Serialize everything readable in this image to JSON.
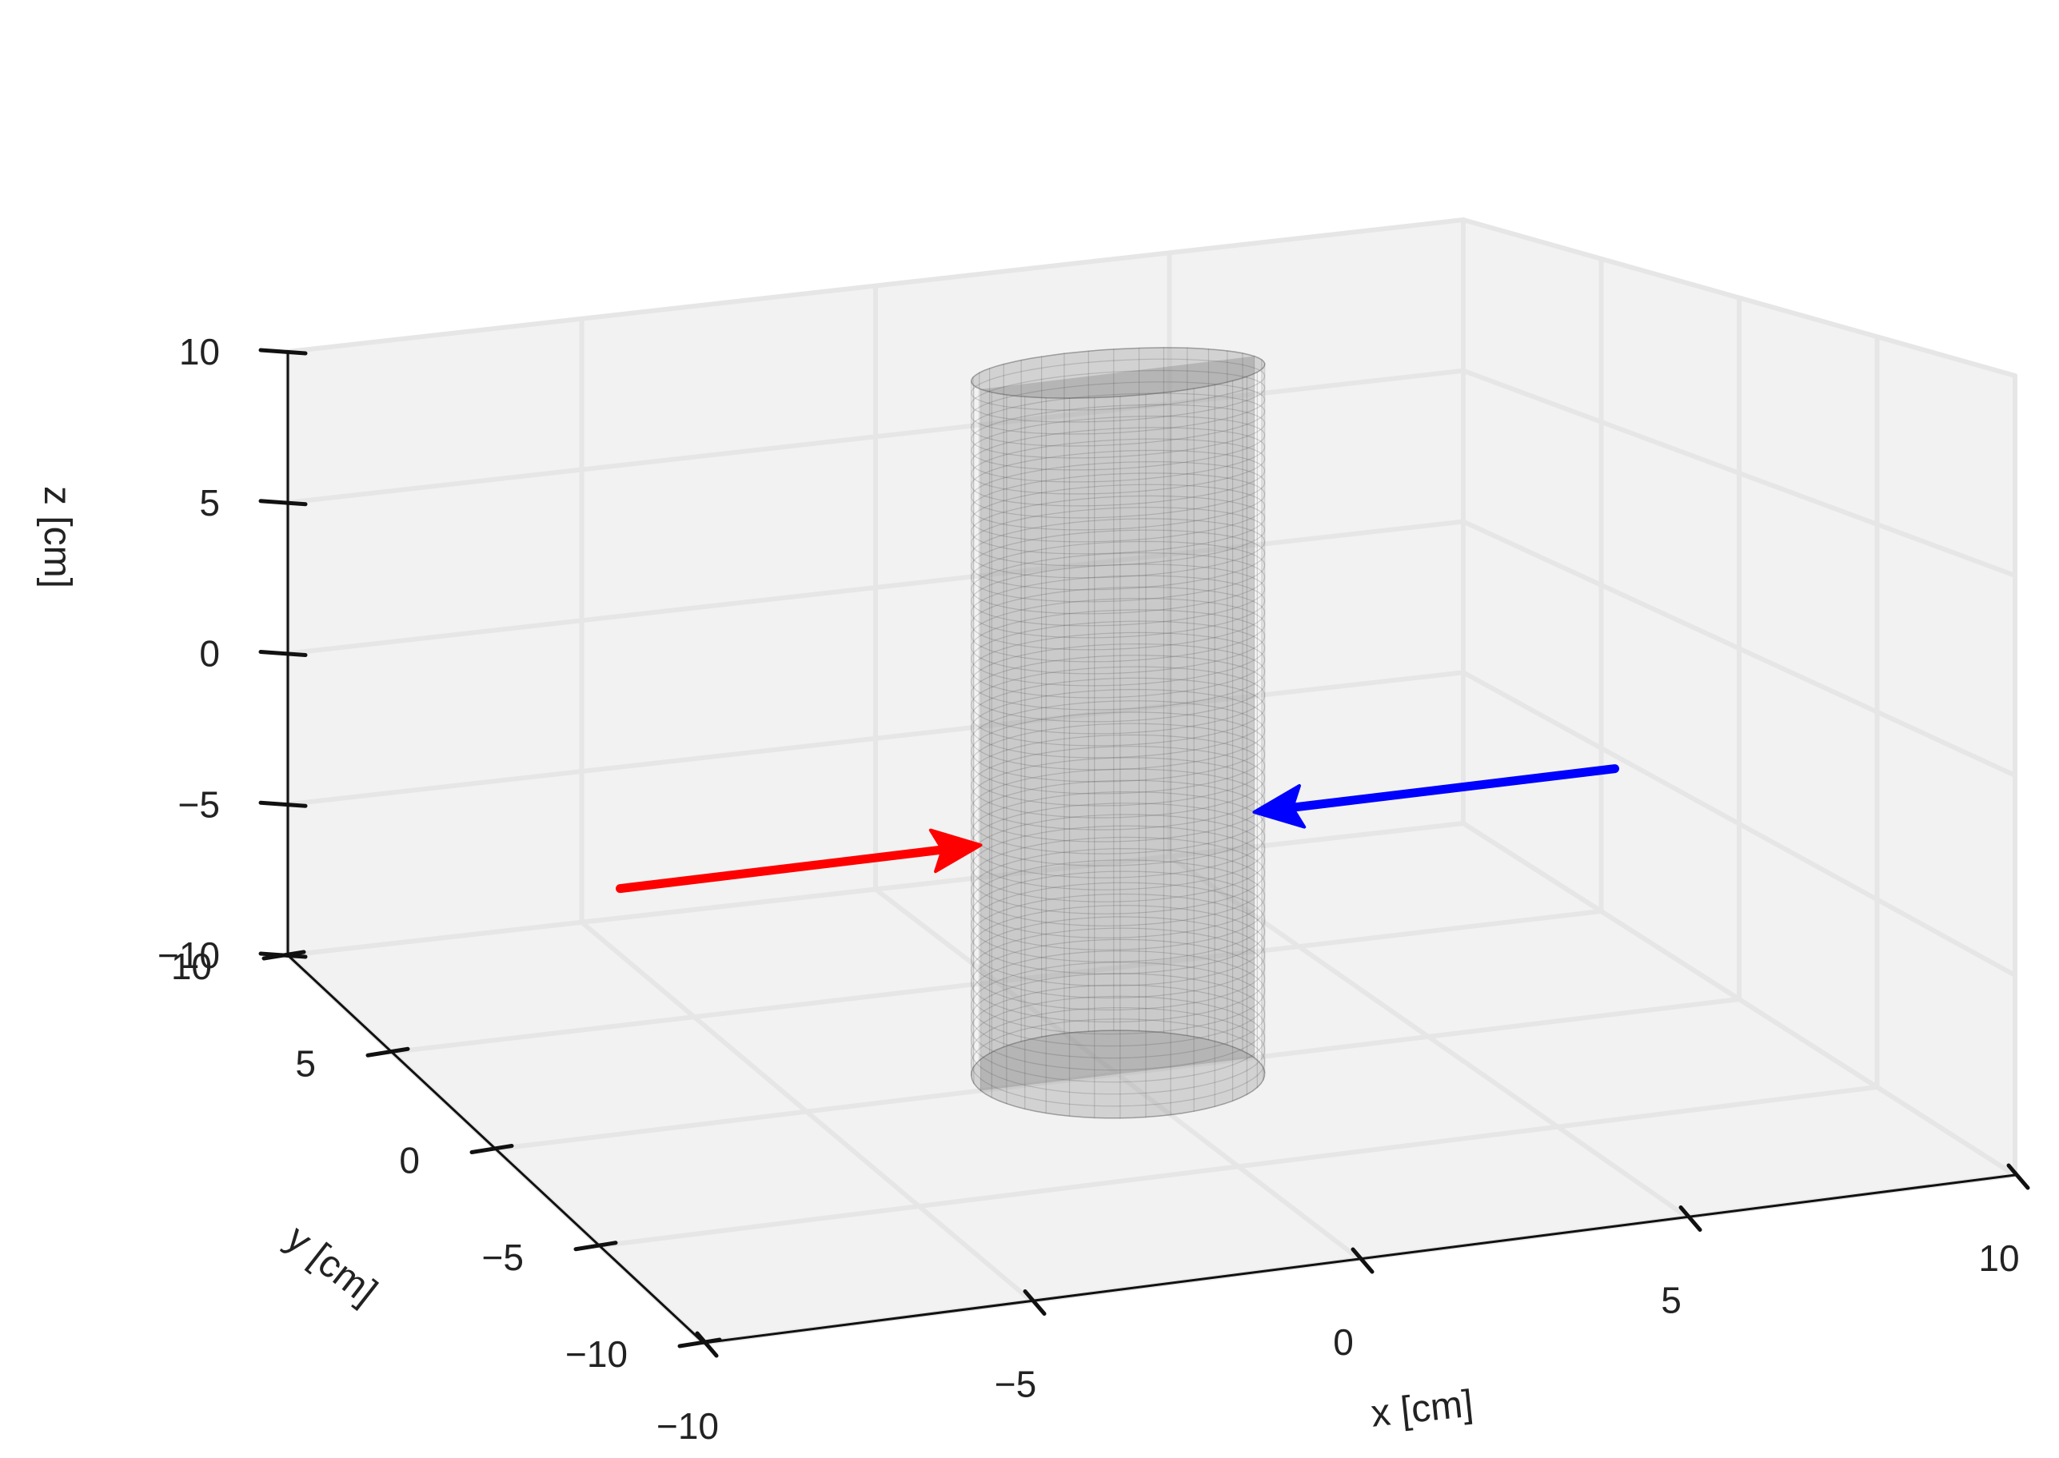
{
  "chart_data": {
    "type": "3d-scene",
    "title": "",
    "xlabel": "x [cm]",
    "ylabel": "y [cm]",
    "zlabel": "z [cm]",
    "xlim": [
      -10,
      10
    ],
    "ylim": [
      -10,
      10
    ],
    "zlim": [
      -10,
      10
    ],
    "x_ticks": [
      {
        "v": -10,
        "label": "−10"
      },
      {
        "v": -5,
        "label": "−5"
      },
      {
        "v": 0,
        "label": "0"
      },
      {
        "v": 5,
        "label": "5"
      },
      {
        "v": 10,
        "label": "10"
      }
    ],
    "y_ticks": [
      {
        "v": -10,
        "label": "−10"
      },
      {
        "v": -5,
        "label": "−5"
      },
      {
        "v": 0,
        "label": "0"
      },
      {
        "v": 5,
        "label": "5"
      },
      {
        "v": 10,
        "label": "10"
      }
    ],
    "z_ticks": [
      {
        "v": -10,
        "label": "−10"
      },
      {
        "v": -5,
        "label": "−5"
      },
      {
        "v": 0,
        "label": "0"
      },
      {
        "v": 5,
        "label": "5"
      },
      {
        "v": 10,
        "label": "10"
      }
    ],
    "grid": true,
    "cylinder": {
      "center_x": 0,
      "center_y": 0,
      "radius": 2.2,
      "z_min": -10,
      "z_max": 10,
      "color": "#808080"
    },
    "arrows": [
      {
        "color": "#ff0000",
        "from": [
          -8,
          0,
          -3
        ],
        "to": [
          -2.2,
          0,
          -3
        ]
      },
      {
        "color": "#0000ff",
        "from": [
          8,
          0,
          -3
        ],
        "to": [
          2.2,
          0,
          -3
        ]
      }
    ],
    "colors": {
      "pane": "#f2f2f2",
      "grid": "#e6e6e6",
      "axis": "#111111"
    }
  }
}
